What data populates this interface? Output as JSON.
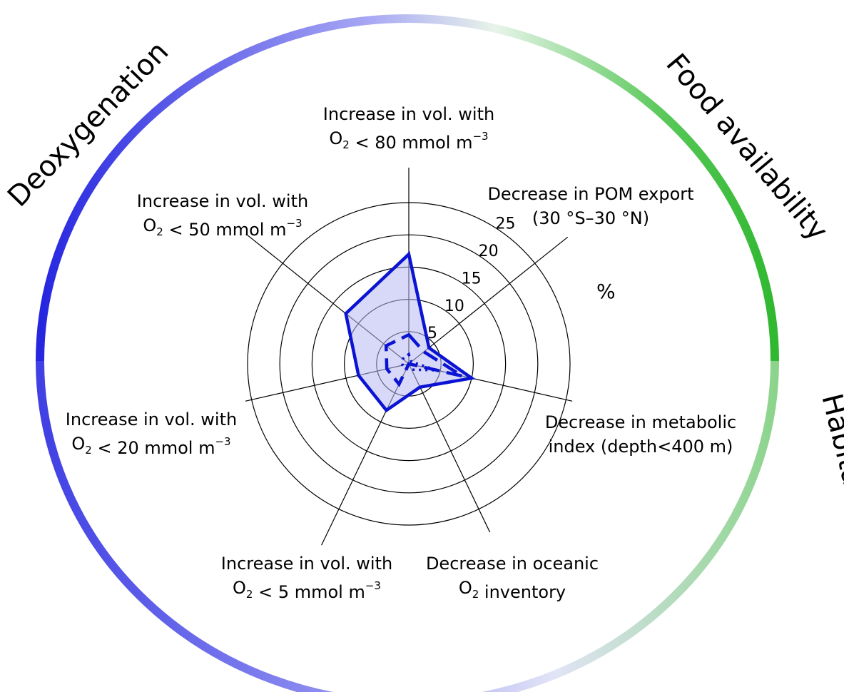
{
  "chart_data": {
    "type": "radar",
    "radial_unit": "%",
    "rlim": [
      0,
      25
    ],
    "rings": [
      5,
      10,
      15,
      20,
      25
    ],
    "ring_labels": [
      "5",
      "10",
      "15",
      "20",
      "25"
    ],
    "grid": true,
    "axes": [
      {
        "line1": "Increase in vol. with",
        "line2_pre": "O",
        "line2_sub": "2",
        "line2_post": "  < 80 mmol m",
        "line2_sup": "−3"
      },
      {
        "line1": "Decrease in POM export",
        "line2_pre": "(30",
        "line2_sub": "",
        "line2_post": "",
        "line2_sup": "",
        "line2_text": "(30 °S–30 °N)"
      },
      {
        "line1": "Decrease in metabolic",
        "line2_text": "index  (depth<400 m)"
      },
      {
        "line1": "Decrease in oceanic",
        "line2_pre": "O",
        "line2_sub": "2",
        "line2_post": " inventory",
        "line2_sup": ""
      },
      {
        "line1": "Increase in vol. with",
        "line2_pre": "O",
        "line2_sub": "2",
        "line2_post": "  < 5 mmol m",
        "line2_sup": "−3"
      },
      {
        "line1": "Increase in vol. with",
        "line2_pre": "O",
        "line2_sub": "2",
        "line2_post": "  < 20 mmol m",
        "line2_sup": "−3"
      },
      {
        "line1": "Increase in vol. with",
        "line2_pre": "O",
        "line2_sub": "2",
        "line2_post": "  < 50 mmol m",
        "line2_sup": "−3"
      }
    ],
    "series": [
      {
        "style": "solid",
        "color": "#0a14d2",
        "fill": "#b8b8f2",
        "values": [
          17,
          4,
          10,
          4,
          8,
          8,
          12.5
        ]
      },
      {
        "style": "dashed",
        "color": "#0a14d2",
        "values": [
          4.5,
          3,
          8.5,
          0,
          3.5,
          3.5,
          4.5
        ]
      },
      {
        "style": "dotted",
        "color": "#0a14d2",
        "values": [
          1.5,
          0.5,
          4.5,
          1,
          0.8,
          1,
          1.2
        ]
      }
    ],
    "categories_outer": [
      {
        "label": "Deoxygenation",
        "color": "#2b2be0"
      },
      {
        "label": "Food availability",
        "color": "#2ab22a"
      },
      {
        "label": "Habitat reduction",
        "color": "#8fd48f"
      }
    ]
  }
}
